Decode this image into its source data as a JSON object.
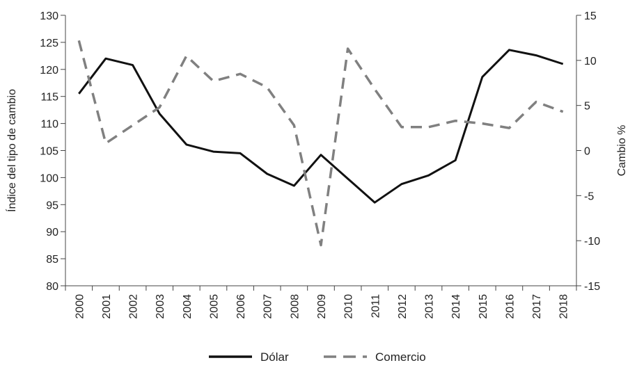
{
  "chart_data": {
    "type": "line",
    "categories": [
      "2000",
      "2001",
      "2002",
      "2003",
      "2004",
      "2005",
      "2006",
      "2007",
      "2008",
      "2009",
      "2010",
      "2011",
      "2012",
      "2013",
      "2014",
      "2015",
      "2016",
      "2017",
      "2018"
    ],
    "series": [
      {
        "name": "Dólar",
        "axis": "left",
        "style": "solid",
        "color": "#111111",
        "values": [
          115.5,
          122.0,
          120.8,
          111.8,
          106.1,
          104.8,
          104.5,
          100.7,
          98.5,
          104.2,
          99.8,
          95.4,
          98.8,
          100.4,
          103.2,
          118.6,
          123.6,
          122.6,
          121.0
        ]
      },
      {
        "name": "Comercio",
        "axis": "right",
        "style": "dashed",
        "color": "#808080",
        "values": [
          12.2,
          0.8,
          2.8,
          4.8,
          10.5,
          7.7,
          8.5,
          7.0,
          2.8,
          -10.5,
          11.3,
          6.8,
          2.6,
          2.6,
          3.3,
          3.0,
          2.5,
          5.4,
          4.3
        ]
      }
    ],
    "left_axis": {
      "label": "Índice del tipo de cambio",
      "ylim": [
        80,
        130
      ],
      "ticks": [
        "80",
        "85",
        "90",
        "95",
        "100",
        "105",
        "110",
        "115",
        "120",
        "125",
        "130"
      ]
    },
    "right_axis": {
      "label": "Cambio %",
      "ylim": [
        -15,
        15
      ],
      "ticks": [
        "-15",
        "-10",
        "-5",
        "0",
        "5",
        "10",
        "15"
      ]
    },
    "grid": false,
    "legend_placement": "bottom-center",
    "title": "",
    "xlabel": ""
  }
}
